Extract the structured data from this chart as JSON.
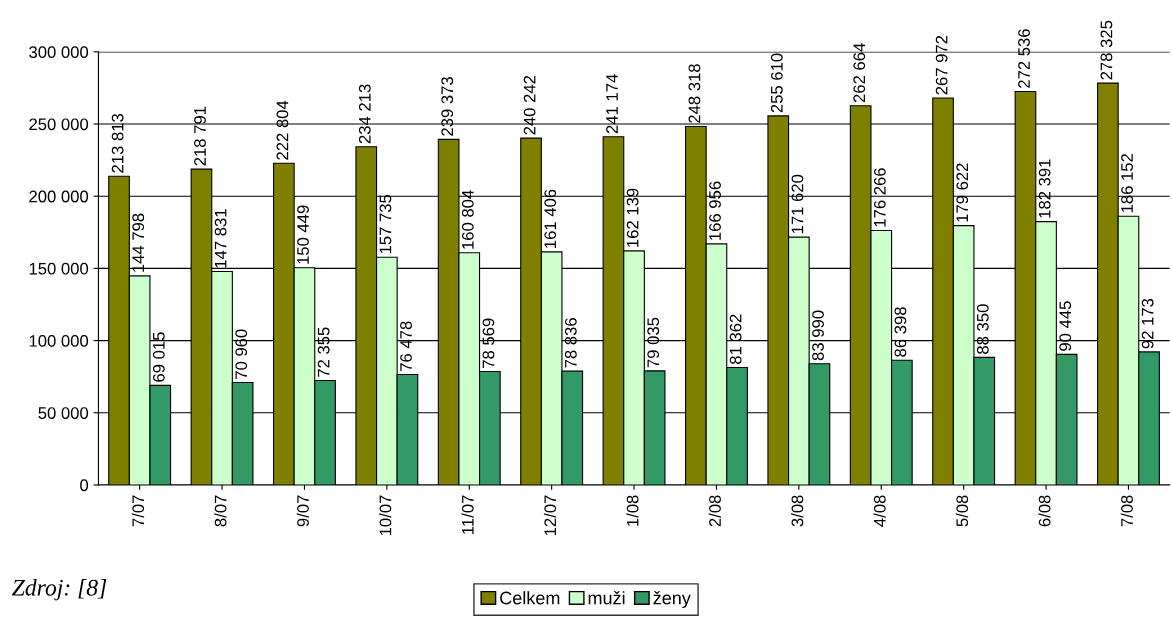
{
  "chart_data": {
    "type": "bar",
    "categories": [
      "7/07",
      "8/07",
      "9/07",
      "10/07",
      "11/07",
      "12/07",
      "1/08",
      "2/08",
      "3/08",
      "4/08",
      "5/08",
      "6/08",
      "7/08"
    ],
    "series": [
      {
        "name": "Celkem",
        "color": "#808000",
        "values": [
          213813,
          218791,
          222804,
          234213,
          239373,
          240242,
          241174,
          248318,
          255610,
          262664,
          267972,
          272536,
          278325
        ],
        "value_labels": [
          "213 813",
          "218 791",
          "222 804",
          "234 213",
          "239 373",
          "240 242",
          "241 174",
          "248 318",
          "255 610",
          "262 664",
          "267 972",
          "272 536",
          "278 325"
        ]
      },
      {
        "name": "muži",
        "color": "#ccffcc",
        "values": [
          144798,
          147831,
          150449,
          157735,
          160804,
          161406,
          162139,
          166956,
          171620,
          176266,
          179622,
          182391,
          186152
        ],
        "value_labels": [
          "144 798",
          "147 831",
          "150 449",
          "157 735",
          "160 804",
          "161 406",
          "162 139",
          "166 956",
          "171 620",
          "176 266",
          "179 622",
          "182 391",
          "186 152"
        ]
      },
      {
        "name": "ženy",
        "color": "#339966",
        "values": [
          69015,
          70960,
          72355,
          76478,
          78569,
          78836,
          79035,
          81362,
          83990,
          86398,
          88350,
          90445,
          92173
        ],
        "value_labels": [
          "69 015",
          "70 960",
          "72 355",
          "76 478",
          "78 569",
          "78 836",
          "79 035",
          "81 362",
          "83 990",
          "86 398",
          "88 350",
          "90 445",
          "92 173"
        ]
      }
    ],
    "ylim": [
      0,
      300000
    ],
    "yticks": [
      {
        "value": 0,
        "label": "0"
      },
      {
        "value": 50000,
        "label": "50 000"
      },
      {
        "value": 100000,
        "label": "100 000"
      },
      {
        "value": 150000,
        "label": "150 000"
      },
      {
        "value": 200000,
        "label": "200 000"
      },
      {
        "value": 250000,
        "label": "250 000"
      },
      {
        "value": 300000,
        "label": "300 000"
      }
    ],
    "grid": "y",
    "legend": "bottom",
    "annotations": [
      "Zdroj: [8]"
    ]
  }
}
